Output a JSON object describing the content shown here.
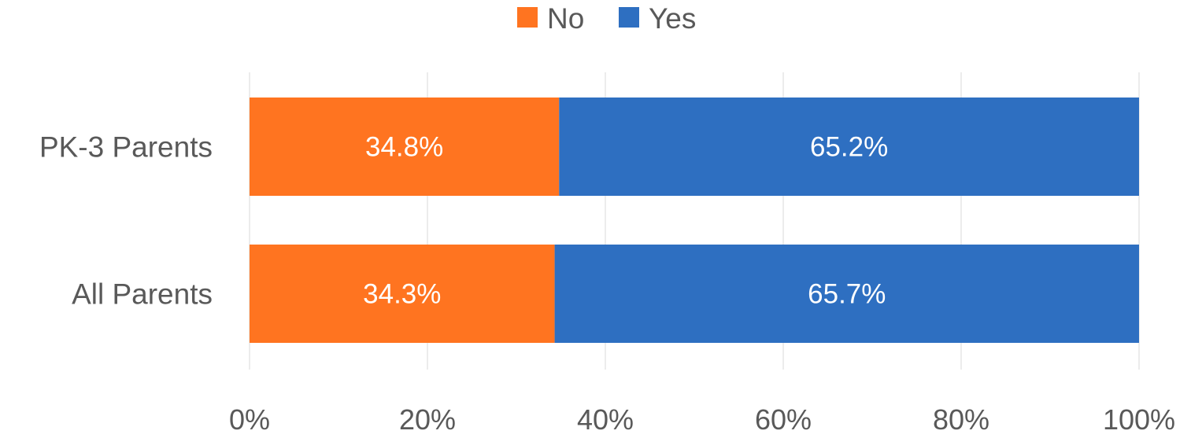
{
  "chart_data": {
    "type": "bar",
    "orientation": "horizontal",
    "stacked": true,
    "percent": true,
    "categories": [
      "PK-3 Parents",
      "All Parents"
    ],
    "series": [
      {
        "name": "No",
        "color": "#ff7420",
        "values": [
          34.8,
          34.3
        ],
        "labels": [
          "34.8%",
          "34.3%"
        ]
      },
      {
        "name": "Yes",
        "color": "#2e6fc1",
        "values": [
          65.2,
          65.7
        ],
        "labels": [
          "65.2%",
          "65.7%"
        ]
      }
    ],
    "xlim": [
      0,
      100
    ],
    "xticks": [
      0,
      20,
      40,
      60,
      80,
      100
    ],
    "xtick_labels": [
      "0%",
      "20%",
      "40%",
      "60%",
      "80%",
      "100%"
    ],
    "grid": "vertical",
    "legend_position": "top-center",
    "title": "",
    "xlabel": "",
    "ylabel": ""
  }
}
